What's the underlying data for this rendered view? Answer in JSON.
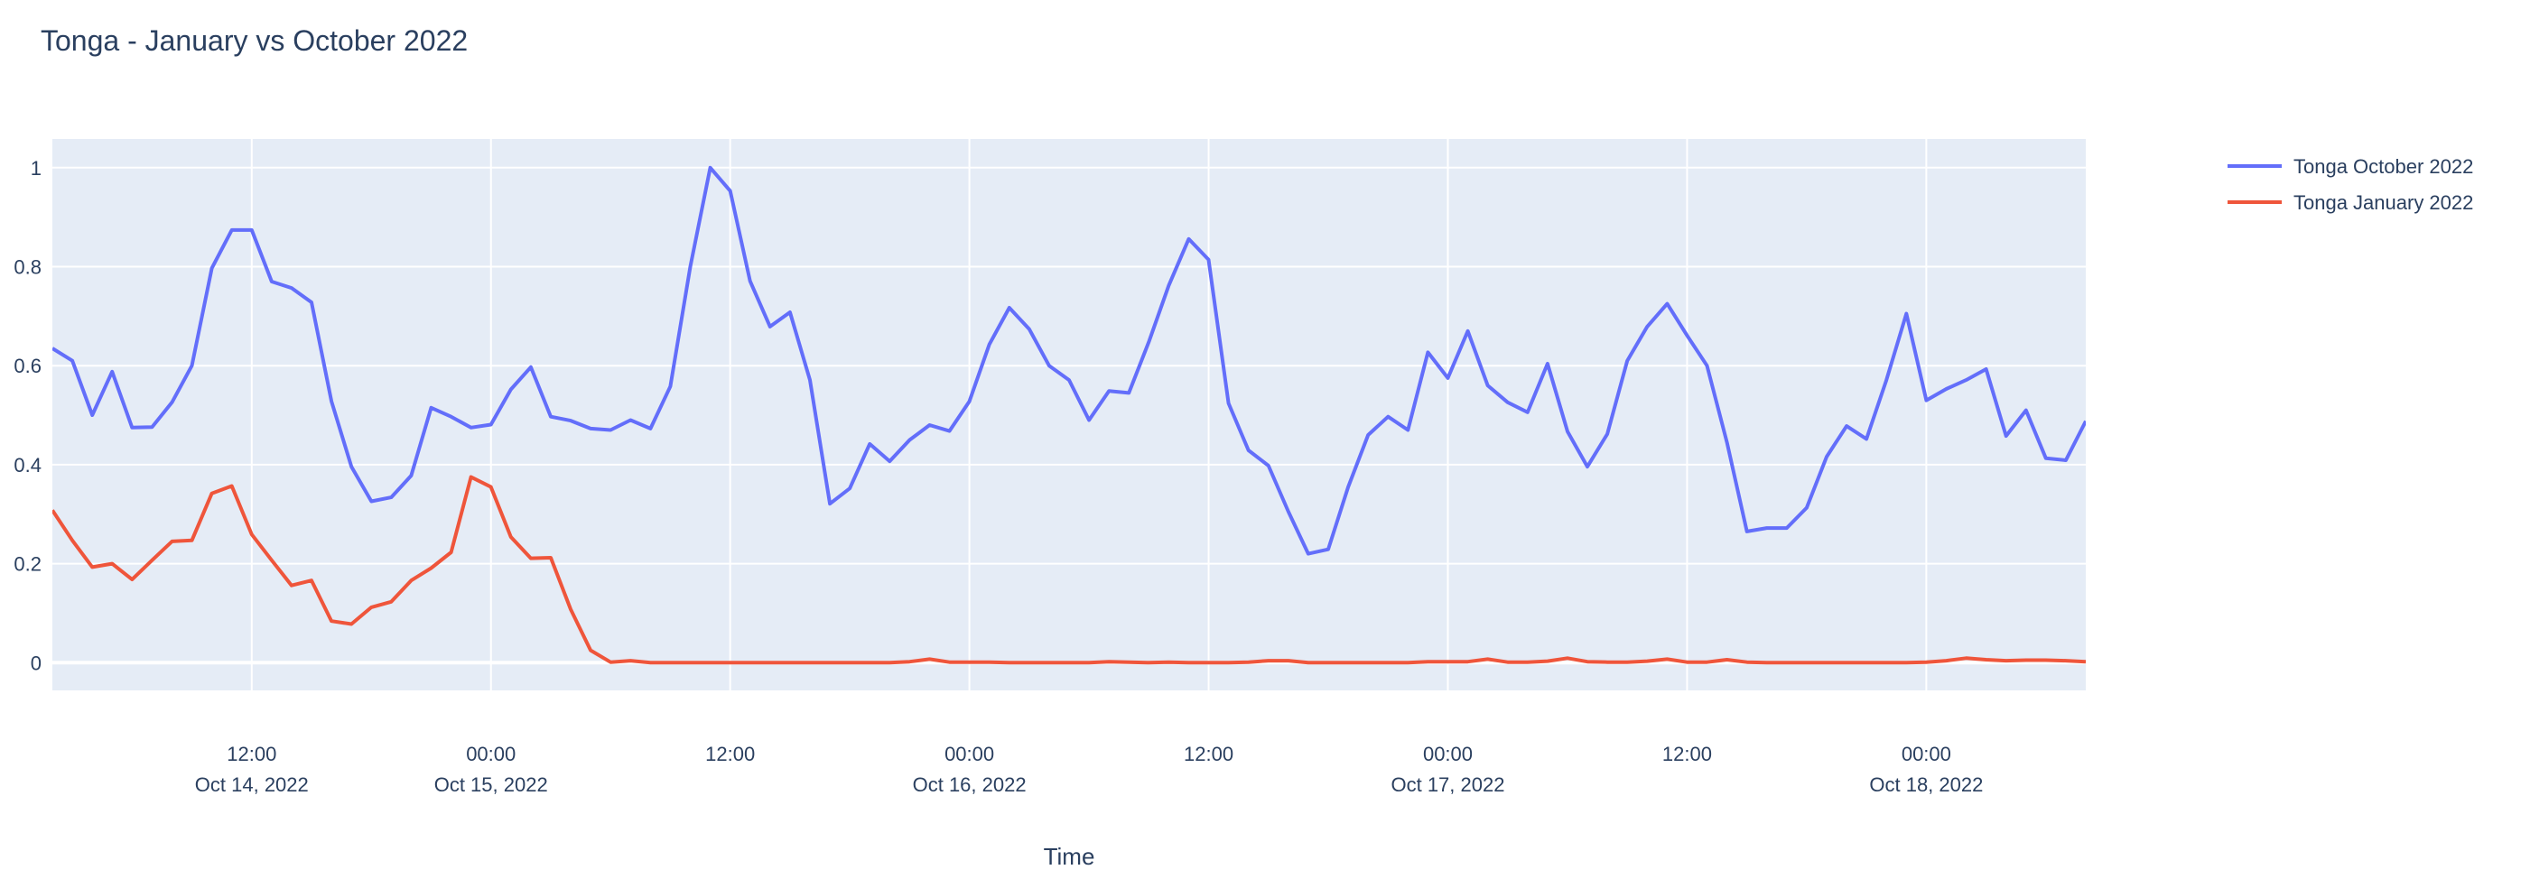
{
  "chart_data": {
    "type": "line",
    "title": "Tonga - January vs October 2022",
    "xlabel": "Time",
    "ylabel": "",
    "ylim": [
      -0.056,
      1.058
    ],
    "xlim": [
      "2022-10-14 02:00",
      "2022-10-18 08:00"
    ],
    "grid": true,
    "legend_placement": "top-right",
    "y_ticks": [
      0,
      0.2,
      0.4,
      0.6,
      0.8,
      1
    ],
    "y_tick_labels": [
      "0",
      "0.2",
      "0.4",
      "0.6",
      "0.8",
      "1"
    ],
    "x_ticks": [
      {
        "t": "2022-10-14 12:00",
        "line1": "12:00",
        "line2": "Oct 14, 2022"
      },
      {
        "t": "2022-10-15 00:00",
        "line1": "00:00",
        "line2": "Oct 15, 2022"
      },
      {
        "t": "2022-10-15 12:00",
        "line1": "12:00",
        "line2": ""
      },
      {
        "t": "2022-10-16 00:00",
        "line1": "00:00",
        "line2": "Oct 16, 2022"
      },
      {
        "t": "2022-10-16 12:00",
        "line1": "12:00",
        "line2": ""
      },
      {
        "t": "2022-10-17 00:00",
        "line1": "00:00",
        "line2": "Oct 17, 2022"
      },
      {
        "t": "2022-10-17 12:00",
        "line1": "12:00",
        "line2": ""
      },
      {
        "t": "2022-10-18 00:00",
        "line1": "00:00",
        "line2": "Oct 18, 2022"
      }
    ],
    "x": [
      "2022-10-14 02:00",
      "2022-10-14 03:00",
      "2022-10-14 04:00",
      "2022-10-14 05:00",
      "2022-10-14 06:00",
      "2022-10-14 07:00",
      "2022-10-14 08:00",
      "2022-10-14 09:00",
      "2022-10-14 10:00",
      "2022-10-14 11:00",
      "2022-10-14 12:00",
      "2022-10-14 13:00",
      "2022-10-14 14:00",
      "2022-10-14 15:00",
      "2022-10-14 16:00",
      "2022-10-14 17:00",
      "2022-10-14 18:00",
      "2022-10-14 19:00",
      "2022-10-14 20:00",
      "2022-10-14 21:00",
      "2022-10-14 22:00",
      "2022-10-14 23:00",
      "2022-10-15 00:00",
      "2022-10-15 01:00",
      "2022-10-15 02:00",
      "2022-10-15 03:00",
      "2022-10-15 04:00",
      "2022-10-15 05:00",
      "2022-10-15 06:00",
      "2022-10-15 07:00",
      "2022-10-15 08:00",
      "2022-10-15 09:00",
      "2022-10-15 10:00",
      "2022-10-15 11:00",
      "2022-10-15 12:00",
      "2022-10-15 13:00",
      "2022-10-15 14:00",
      "2022-10-15 15:00",
      "2022-10-15 16:00",
      "2022-10-15 17:00",
      "2022-10-15 18:00",
      "2022-10-15 19:00",
      "2022-10-15 20:00",
      "2022-10-15 21:00",
      "2022-10-15 22:00",
      "2022-10-15 23:00",
      "2022-10-16 00:00",
      "2022-10-16 01:00",
      "2022-10-16 02:00",
      "2022-10-16 03:00",
      "2022-10-16 04:00",
      "2022-10-16 05:00",
      "2022-10-16 06:00",
      "2022-10-16 07:00",
      "2022-10-16 08:00",
      "2022-10-16 09:00",
      "2022-10-16 10:00",
      "2022-10-16 11:00",
      "2022-10-16 12:00",
      "2022-10-16 13:00",
      "2022-10-16 14:00",
      "2022-10-16 15:00",
      "2022-10-16 16:00",
      "2022-10-16 17:00",
      "2022-10-16 18:00",
      "2022-10-16 19:00",
      "2022-10-16 20:00",
      "2022-10-16 21:00",
      "2022-10-16 22:00",
      "2022-10-16 23:00",
      "2022-10-17 00:00",
      "2022-10-17 01:00",
      "2022-10-17 02:00",
      "2022-10-17 03:00",
      "2022-10-17 04:00",
      "2022-10-17 05:00",
      "2022-10-17 06:00",
      "2022-10-17 07:00",
      "2022-10-17 08:00",
      "2022-10-17 09:00",
      "2022-10-17 10:00",
      "2022-10-17 11:00",
      "2022-10-17 12:00",
      "2022-10-17 13:00",
      "2022-10-17 14:00",
      "2022-10-17 15:00",
      "2022-10-17 16:00",
      "2022-10-17 17:00",
      "2022-10-17 18:00",
      "2022-10-17 19:00",
      "2022-10-17 20:00",
      "2022-10-17 21:00",
      "2022-10-17 22:00",
      "2022-10-17 23:00",
      "2022-10-18 00:00",
      "2022-10-18 01:00",
      "2022-10-18 02:00",
      "2022-10-18 03:00",
      "2022-10-18 04:00",
      "2022-10-18 05:00",
      "2022-10-18 06:00",
      "2022-10-18 07:00",
      "2022-10-18 08:00"
    ],
    "series": [
      {
        "name": "Tonga October 2022",
        "color": "#636efa",
        "values": [
          0.635,
          0.61,
          0.5,
          0.588,
          0.475,
          0.476,
          0.526,
          0.6,
          0.797,
          0.874,
          0.874,
          0.77,
          0.757,
          0.728,
          0.528,
          0.396,
          0.326,
          0.334,
          0.378,
          0.515,
          0.497,
          0.475,
          0.481,
          0.552,
          0.597,
          0.497,
          0.489,
          0.473,
          0.47,
          0.49,
          0.473,
          0.558,
          0.8,
          1.0,
          0.953,
          0.771,
          0.679,
          0.708,
          0.571,
          0.321,
          0.352,
          0.442,
          0.407,
          0.45,
          0.48,
          0.468,
          0.528,
          0.643,
          0.717,
          0.674,
          0.6,
          0.571,
          0.49,
          0.549,
          0.545,
          0.648,
          0.762,
          0.856,
          0.814,
          0.524,
          0.429,
          0.398,
          0.305,
          0.22,
          0.229,
          0.355,
          0.46,
          0.497,
          0.47,
          0.627,
          0.575,
          0.67,
          0.56,
          0.526,
          0.506,
          0.604,
          0.467,
          0.396,
          0.462,
          0.61,
          0.679,
          0.725,
          0.661,
          0.6,
          0.445,
          0.265,
          0.272,
          0.272,
          0.313,
          0.416,
          0.478,
          0.452,
          0.571,
          0.705,
          0.53,
          0.553,
          0.571,
          0.593,
          0.458,
          0.51,
          0.413,
          0.409,
          0.488
        ]
      },
      {
        "name": "Tonga January 2022",
        "color": "#EF553B",
        "values": [
          0.308,
          0.247,
          0.193,
          0.2,
          0.168,
          0.207,
          0.245,
          0.247,
          0.342,
          0.357,
          0.259,
          0.207,
          0.156,
          0.166,
          0.084,
          0.078,
          0.112,
          0.123,
          0.166,
          0.191,
          0.223,
          0.375,
          0.355,
          0.254,
          0.211,
          0.212,
          0.108,
          0.025,
          0.001,
          0.004,
          0.0,
          0.0,
          0.0,
          0.0,
          0.0,
          0.0,
          0.0,
          0.0,
          0.0,
          0.0,
          0.0,
          0.0,
          0.0,
          0.002,
          0.007,
          0.001,
          0.001,
          0.001,
          0.0,
          0.0,
          0.0,
          0.0,
          0.0,
          0.002,
          0.001,
          0.0,
          0.001,
          0.0,
          0.0,
          0.0,
          0.001,
          0.004,
          0.004,
          0.0,
          0.0,
          0.0,
          0.0,
          0.0,
          0.0,
          0.002,
          0.002,
          0.002,
          0.007,
          0.001,
          0.001,
          0.003,
          0.009,
          0.002,
          0.001,
          0.001,
          0.003,
          0.007,
          0.001,
          0.001,
          0.006,
          0.001,
          0.0,
          0.0,
          0.0,
          0.0,
          0.0,
          0.0,
          0.0,
          0.0,
          0.001,
          0.004,
          0.009,
          0.006,
          0.004,
          0.005,
          0.005,
          0.004,
          0.002
        ]
      }
    ]
  },
  "colors": {
    "plot_background": "#E5ECF6",
    "grid": "#ffffff",
    "text": "#2a3f5f"
  }
}
